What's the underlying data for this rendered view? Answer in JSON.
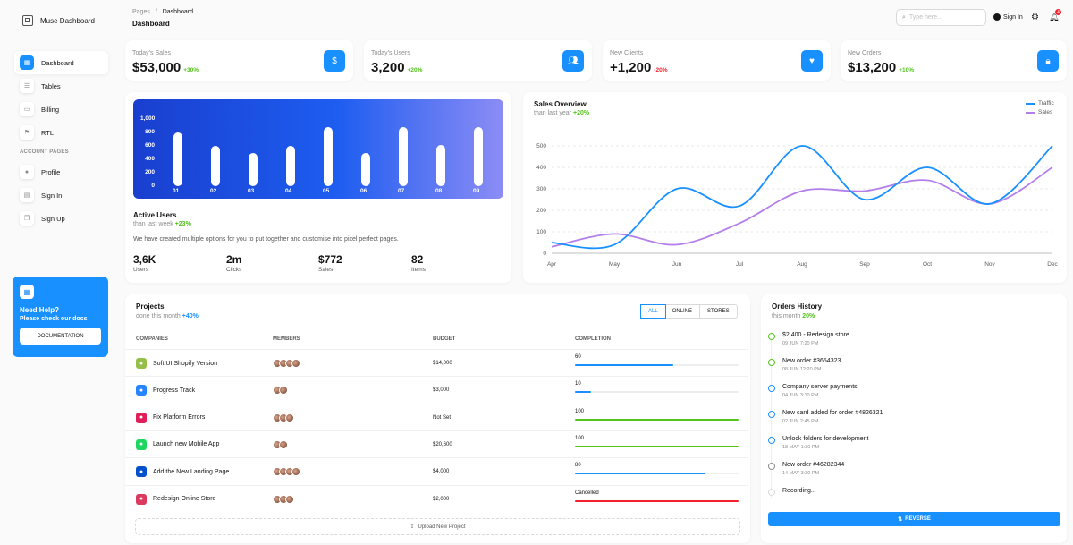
{
  "brand": {
    "name": "Muse Dashboard"
  },
  "sidebar": {
    "items": [
      {
        "label": "Dashboard",
        "icon": "dashboard-icon"
      },
      {
        "label": "Tables",
        "icon": "tables-icon"
      },
      {
        "label": "Billing",
        "icon": "billing-icon"
      },
      {
        "label": "RTL",
        "icon": "rtl-icon"
      }
    ],
    "section_label": "ACCOUNT PAGES",
    "account_items": [
      {
        "label": "Profile",
        "icon": "profile-icon"
      },
      {
        "label": "Sign In",
        "icon": "signin-icon"
      },
      {
        "label": "Sign Up",
        "icon": "signup-icon"
      }
    ],
    "help": {
      "title": "Need Help?",
      "subtitle": "Please check our docs",
      "button": "DOCUMENTATION"
    }
  },
  "header": {
    "breadcrumb_root": "Pages",
    "breadcrumb_sep": "/",
    "breadcrumb_current": "Dashboard",
    "title": "Dashboard",
    "search_placeholder": "Type here...",
    "signin": "Sign In",
    "notification_count": "4"
  },
  "stats": [
    {
      "label": "Today's Sales",
      "value": "$53,000",
      "delta": "+30%",
      "trend": "up",
      "icon": "dollar-icon"
    },
    {
      "label": "Today's Users",
      "value": "3,200",
      "delta": "+20%",
      "trend": "up",
      "icon": "users-icon"
    },
    {
      "label": "New Clients",
      "value": "+1,200",
      "delta": "-20%",
      "trend": "down",
      "icon": "heart-icon"
    },
    {
      "label": "New Orders",
      "value": "$13,200",
      "delta": "+10%",
      "trend": "up",
      "icon": "cart-icon"
    }
  ],
  "active_users": {
    "title": "Active Users",
    "subtitle_prefix": "than last week",
    "subtitle_delta": "+23%",
    "description": "We have created multiple options for you to put together and customise into pixel perfect pages.",
    "stats": [
      {
        "value": "3,6K",
        "label": "Users"
      },
      {
        "value": "2m",
        "label": "Clicks"
      },
      {
        "value": "$772",
        "label": "Sales"
      },
      {
        "value": "82",
        "label": "Items"
      }
    ]
  },
  "sales_overview": {
    "title": "Sales Overview",
    "subtitle_prefix": "than last year",
    "subtitle_delta": "+20%"
  },
  "chart_data": [
    {
      "type": "bar",
      "categories": [
        "01",
        "02",
        "03",
        "04",
        "05",
        "06",
        "07",
        "08",
        "09"
      ],
      "values": [
        800,
        600,
        490,
        600,
        880,
        490,
        880,
        620,
        880
      ],
      "ytick_labels": [
        "1,000",
        "800",
        "600",
        "400",
        "200",
        "0"
      ],
      "ylim": [
        0,
        1000
      ],
      "grid": false,
      "color": "#ffffff"
    },
    {
      "type": "line",
      "categories": [
        "Apr",
        "May",
        "Jun",
        "Jul",
        "Aug",
        "Sep",
        "Oct",
        "Nov",
        "Dec"
      ],
      "series": [
        {
          "name": "Traffic",
          "color": "#1890ff",
          "values": [
            50,
            40,
            300,
            220,
            500,
            250,
            400,
            230,
            500
          ]
        },
        {
          "name": "Sales",
          "color": "#b37feb",
          "values": [
            30,
            90,
            40,
            140,
            290,
            290,
            340,
            230,
            400
          ]
        }
      ],
      "ytick_labels": [
        "500",
        "400",
        "300",
        "200",
        "100",
        "0"
      ],
      "ylim": [
        0,
        500
      ],
      "grid": true,
      "legend": "top-right"
    }
  ],
  "projects": {
    "title": "Projects",
    "subtitle_prefix": "done this month",
    "subtitle_delta": "+40%",
    "filters": [
      "ALL",
      "ONLINE",
      "STORES"
    ],
    "columns": [
      "COMPANIES",
      "MEMBERS",
      "BUDGET",
      "COMPLETION"
    ],
    "rows": [
      {
        "company": "Soft UI Shopify Version",
        "budget": "$14,000",
        "completion_label": "60",
        "completion": 60,
        "color": "#1890ff",
        "logo": "shopify-icon",
        "logo_color": "#95bf47",
        "members": 4
      },
      {
        "company": "Progress Track",
        "budget": "$3,000",
        "completion_label": "10",
        "completion": 10,
        "color": "#1890ff",
        "logo": "atlassian-icon",
        "logo_color": "#2684ff",
        "members": 2
      },
      {
        "company": "Fix Platform Errors",
        "budget": "Not Set",
        "completion_label": "100",
        "completion": 100,
        "color": "#52c41a",
        "logo": "slack-icon",
        "logo_color": "#e01e5a",
        "members": 3
      },
      {
        "company": "Launch new Mobile App",
        "budget": "$20,600",
        "completion_label": "100",
        "completion": 100,
        "color": "#52c41a",
        "logo": "spotify-icon",
        "logo_color": "#1ed760",
        "members": 2
      },
      {
        "company": "Add the New Landing Page",
        "budget": "$4,000",
        "completion_label": "80",
        "completion": 80,
        "color": "#1890ff",
        "logo": "jira-icon",
        "logo_color": "#0052cc",
        "members": 4
      },
      {
        "company": "Redesign Online Store",
        "budget": "$2,000",
        "completion_label": "Cancelled",
        "completion": 100,
        "color": "#f5222d",
        "logo": "invision-icon",
        "logo_color": "#dc395f",
        "members": 3
      }
    ],
    "upload_label": "Upload New Project"
  },
  "orders": {
    "title": "Orders History",
    "subtitle_prefix": "this month",
    "subtitle_delta": "20%",
    "items": [
      {
        "title": "$2,400 - Redesign store",
        "date": "09 JUN 7:20 PM",
        "color": "#52c41a"
      },
      {
        "title": "New order #3654323",
        "date": "08 JUN 12:20 PM",
        "color": "#52c41a"
      },
      {
        "title": "Company server payments",
        "date": "04 JUN 3:10 PM",
        "color": "#1890ff"
      },
      {
        "title": "New card added for order #4826321",
        "date": "02 JUN 2:45 PM",
        "color": "#1890ff"
      },
      {
        "title": "Unlock folders for development",
        "date": "18 MAY 1:30 PM",
        "color": "#1890ff"
      },
      {
        "title": "New order #46282344",
        "date": "14 MAY 3:30 PM",
        "color": "#8c8c8c"
      },
      {
        "title": "Recording...",
        "date": "",
        "color": "#d9d9d9"
      }
    ],
    "button": "REVERSE"
  }
}
